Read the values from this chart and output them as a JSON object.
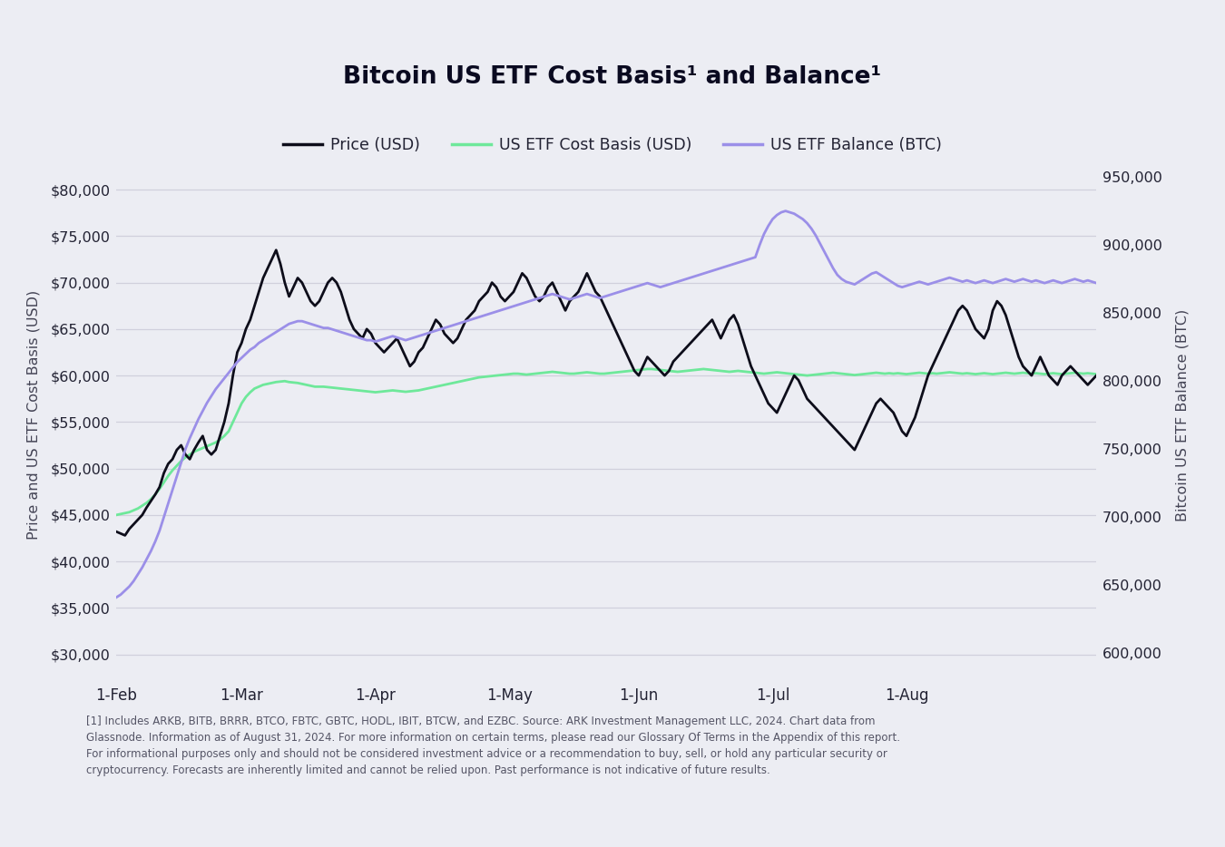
{
  "title": "Bitcoin US ETF Cost Basis¹ and Balance¹",
  "legend": [
    "Price (USD)",
    "US ETF Cost Basis (USD)",
    "US ETF Balance (BTC)"
  ],
  "legend_colors": [
    "#0d0d1a",
    "#6ee89a",
    "#9b8fe8"
  ],
  "ylabel_left": "Price and US ETF Cost Basis (USD)",
  "ylabel_right": "Bitcoin US ETF Balance (BTC)",
  "xtick_labels": [
    "1-Feb",
    "1-Mar",
    "1-Apr",
    "1-May",
    "1-Jun",
    "1-Jul",
    "1-Aug"
  ],
  "ytick_left": [
    30000,
    35000,
    40000,
    45000,
    50000,
    55000,
    60000,
    65000,
    70000,
    75000,
    80000
  ],
  "ytick_right": [
    600000,
    650000,
    700000,
    750000,
    800000,
    850000,
    900000,
    950000
  ],
  "ylim_left": [
    27500,
    84000
  ],
  "ylim_right": [
    582000,
    968000
  ],
  "background_color": "#ecedf3",
  "grid_color": "#d0d0dc",
  "footnote": "[1] Includes ARKB, BITB, BRRR, BTCO, FBTC, GBTC, HODL, IBIT, BTCW, and EZBC. Source: ARK Investment Management LLC, 2024. Chart data from\nGlassnode. Information as of August 31, 2024. For more information on certain terms, please read our Glossary Of Terms in the Appendix of this report.\nFor informational purposes only and should not be considered investment advice or a recommendation to buy, sell, or hold any particular security or\ncryptocurrency. Forecasts are inherently limited and cannot be relied upon. Past performance is not indicative of future results.",
  "price_data": [
    43200,
    43000,
    42800,
    43500,
    44000,
    44500,
    45000,
    45800,
    46500,
    47200,
    48000,
    49500,
    50500,
    51000,
    52000,
    52500,
    51500,
    51000,
    52000,
    52800,
    53500,
    52000,
    51500,
    52000,
    53500,
    55000,
    57000,
    60000,
    62500,
    63500,
    65000,
    66000,
    67500,
    69000,
    70500,
    71500,
    72500,
    73500,
    72000,
    70000,
    68500,
    69500,
    70500,
    70000,
    69000,
    68000,
    67500,
    68000,
    69000,
    70000,
    70500,
    70000,
    69000,
    67500,
    66000,
    65000,
    64500,
    64000,
    65000,
    64500,
    63500,
    63000,
    62500,
    63000,
    63500,
    64000,
    63000,
    62000,
    61000,
    61500,
    62500,
    63000,
    64000,
    65000,
    66000,
    65500,
    64500,
    64000,
    63500,
    64000,
    65000,
    66000,
    66500,
    67000,
    68000,
    68500,
    69000,
    70000,
    69500,
    68500,
    68000,
    68500,
    69000,
    70000,
    71000,
    70500,
    69500,
    68500,
    68000,
    68500,
    69500,
    70000,
    69000,
    68000,
    67000,
    68000,
    68500,
    69000,
    70000,
    71000,
    70000,
    69000,
    68500,
    67500,
    66500,
    65500,
    64500,
    63500,
    62500,
    61500,
    60500,
    60000,
    61000,
    62000,
    61500,
    61000,
    60500,
    60000,
    60500,
    61500,
    62000,
    62500,
    63000,
    63500,
    64000,
    64500,
    65000,
    65500,
    66000,
    65000,
    64000,
    65000,
    66000,
    66500,
    65500,
    64000,
    62500,
    61000,
    60000,
    59000,
    58000,
    57000,
    56500,
    56000,
    57000,
    58000,
    59000,
    60000,
    59500,
    58500,
    57500,
    57000,
    56500,
    56000,
    55500,
    55000,
    54500,
    54000,
    53500,
    53000,
    52500,
    52000,
    53000,
    54000,
    55000,
    56000,
    57000,
    57500,
    57000,
    56500,
    56000,
    55000,
    54000,
    53500,
    54500,
    55500,
    57000,
    58500,
    60000,
    61000,
    62000,
    63000,
    64000,
    65000,
    66000,
    67000,
    67500,
    67000,
    66000,
    65000,
    64500,
    64000,
    65000,
    67000,
    68000,
    67500,
    66500,
    65000,
    63500,
    62000,
    61000,
    60500,
    60000,
    61000,
    62000,
    61000,
    60000,
    59500,
    59000,
    60000,
    60500,
    61000,
    60500,
    60000,
    59500,
    59000,
    59500,
    60000
  ],
  "cost_basis_data": [
    45000,
    45100,
    45200,
    45300,
    45500,
    45700,
    46000,
    46300,
    46700,
    47200,
    47800,
    48500,
    49200,
    49800,
    50300,
    50800,
    51200,
    51500,
    51800,
    52000,
    52200,
    52400,
    52600,
    52800,
    53100,
    53500,
    54000,
    55000,
    56000,
    57000,
    57700,
    58200,
    58600,
    58800,
    59000,
    59100,
    59200,
    59300,
    59350,
    59400,
    59300,
    59250,
    59200,
    59100,
    59000,
    58900,
    58800,
    58800,
    58800,
    58750,
    58700,
    58650,
    58600,
    58550,
    58500,
    58450,
    58400,
    58350,
    58300,
    58250,
    58200,
    58250,
    58300,
    58350,
    58400,
    58350,
    58300,
    58250,
    58300,
    58350,
    58400,
    58500,
    58600,
    58700,
    58800,
    58900,
    59000,
    59100,
    59200,
    59300,
    59400,
    59500,
    59600,
    59700,
    59800,
    59850,
    59900,
    59950,
    60000,
    60050,
    60100,
    60150,
    60200,
    60200,
    60150,
    60100,
    60150,
    60200,
    60250,
    60300,
    60350,
    60400,
    60350,
    60300,
    60250,
    60200,
    60200,
    60250,
    60300,
    60350,
    60300,
    60250,
    60200,
    60200,
    60250,
    60300,
    60350,
    60400,
    60450,
    60500,
    60550,
    60600,
    60650,
    60700,
    60700,
    60650,
    60600,
    60550,
    60500,
    60450,
    60400,
    60450,
    60500,
    60550,
    60600,
    60650,
    60700,
    60650,
    60600,
    60550,
    60500,
    60450,
    60400,
    60450,
    60500,
    60450,
    60400,
    60350,
    60300,
    60250,
    60200,
    60250,
    60300,
    60350,
    60300,
    60250,
    60200,
    60150,
    60100,
    60050,
    60000,
    60050,
    60100,
    60150,
    60200,
    60250,
    60300,
    60250,
    60200,
    60150,
    60100,
    60050,
    60100,
    60150,
    60200,
    60250,
    60300,
    60250,
    60200,
    60250,
    60200,
    60250,
    60200,
    60150,
    60200,
    60250,
    60300,
    60250,
    60200,
    60250,
    60200,
    60250,
    60300,
    60350,
    60300,
    60250,
    60200,
    60250,
    60200,
    60150,
    60200,
    60250,
    60200,
    60150,
    60200,
    60250,
    60300,
    60250,
    60200,
    60250,
    60300,
    60250,
    60200,
    60250,
    60200,
    60150,
    60200,
    60250,
    60200,
    60150,
    60200,
    60250,
    60300,
    60250,
    60200,
    60250,
    60200,
    60150
  ],
  "balance_data": [
    641000,
    643000,
    646000,
    649000,
    653000,
    658000,
    663000,
    669000,
    675000,
    682000,
    690000,
    700000,
    710000,
    720000,
    730000,
    740000,
    750000,
    758000,
    765000,
    772000,
    778000,
    784000,
    789000,
    794000,
    798000,
    802000,
    806000,
    810000,
    814000,
    817000,
    820000,
    823000,
    825000,
    828000,
    830000,
    832000,
    834000,
    836000,
    838000,
    840000,
    842000,
    843000,
    844000,
    844000,
    843000,
    842000,
    841000,
    840000,
    839000,
    839000,
    838000,
    837000,
    836000,
    835000,
    834000,
    833000,
    832000,
    831000,
    830000,
    830000,
    829000,
    830000,
    831000,
    832000,
    833000,
    832000,
    831000,
    830000,
    831000,
    832000,
    833000,
    834000,
    835000,
    836000,
    837000,
    838000,
    839000,
    840000,
    841000,
    842000,
    843000,
    844000,
    845000,
    846000,
    847000,
    848000,
    849000,
    850000,
    851000,
    852000,
    853000,
    854000,
    855000,
    856000,
    857000,
    858000,
    859000,
    860000,
    861000,
    862000,
    863000,
    864000,
    863000,
    862000,
    861000,
    860000,
    861000,
    862000,
    863000,
    864000,
    863000,
    862000,
    861000,
    862000,
    863000,
    864000,
    865000,
    866000,
    867000,
    868000,
    869000,
    870000,
    871000,
    872000,
    871000,
    870000,
    869000,
    870000,
    871000,
    872000,
    873000,
    874000,
    875000,
    876000,
    877000,
    878000,
    879000,
    880000,
    881000,
    882000,
    883000,
    884000,
    885000,
    886000,
    887000,
    888000,
    889000,
    890000,
    891000,
    900000,
    908000,
    914000,
    919000,
    922000,
    924000,
    925000,
    924000,
    923000,
    921000,
    919000,
    916000,
    912000,
    907000,
    901000,
    895000,
    889000,
    883000,
    878000,
    875000,
    873000,
    872000,
    871000,
    873000,
    875000,
    877000,
    879000,
    880000,
    878000,
    876000,
    874000,
    872000,
    870000,
    869000,
    870000,
    871000,
    872000,
    873000,
    872000,
    871000,
    872000,
    873000,
    874000,
    875000,
    876000,
    875000,
    874000,
    873000,
    874000,
    873000,
    872000,
    873000,
    874000,
    873000,
    872000,
    873000,
    874000,
    875000,
    874000,
    873000,
    874000,
    875000,
    874000,
    873000,
    874000,
    873000,
    872000,
    873000,
    874000,
    873000,
    872000,
    873000,
    874000,
    875000,
    874000,
    873000,
    874000,
    873000,
    872000
  ]
}
